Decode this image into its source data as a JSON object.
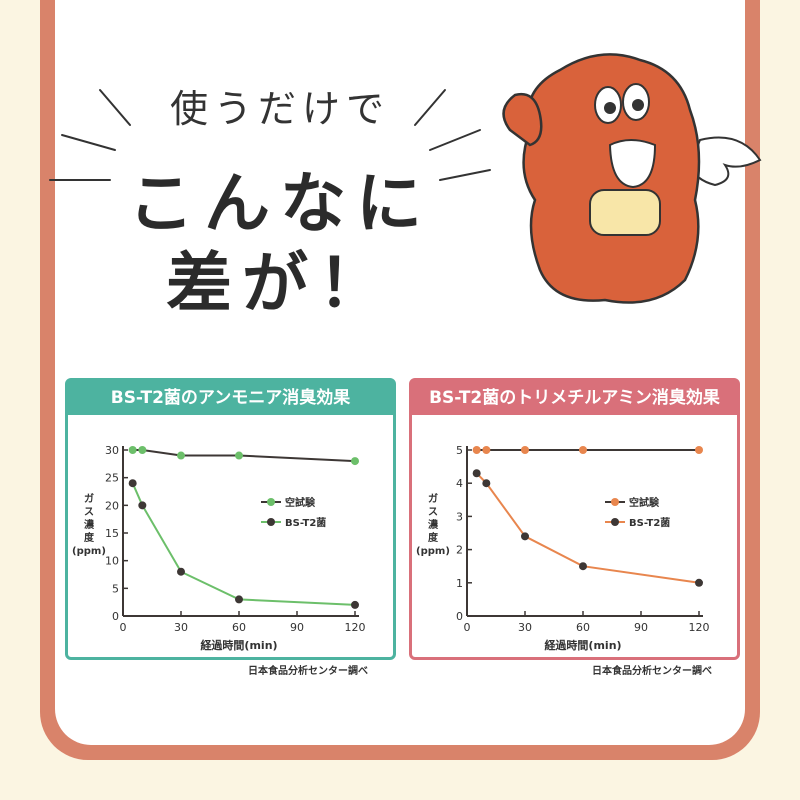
{
  "headline": {
    "line1": "使うだけで",
    "line2": "こんなに",
    "line3": "差が！"
  },
  "colors": {
    "frame": "#d9836a",
    "teal": "#4db3a0",
    "pink": "#d9707a",
    "green": "#6cbf6a",
    "orange": "#e8864e",
    "dark": "#3d3735"
  },
  "chart_data": [
    {
      "type": "line",
      "title": "BS-T2菌のアンモニア消臭効果",
      "xlabel": "経過時間(min)",
      "ylabel": "ガス濃度(ppm)",
      "xlim": [
        0,
        120
      ],
      "ylim": [
        0,
        30
      ],
      "xticks": [
        0,
        30,
        60,
        90,
        120
      ],
      "yticks": [
        0,
        5,
        10,
        15,
        20,
        25,
        30
      ],
      "legend_position": "right-center",
      "grid": false,
      "series": [
        {
          "name": "空試験",
          "x": [
            5,
            10,
            30,
            60,
            120
          ],
          "y": [
            30,
            30,
            29,
            29,
            28
          ],
          "line_color": "#3d3735",
          "marker_color": "#6cbf6a"
        },
        {
          "name": "BS-T2菌",
          "x": [
            5,
            10,
            30,
            60,
            120
          ],
          "y": [
            24,
            20,
            8,
            3,
            2
          ],
          "line_color": "#6cbf6a",
          "marker_color": "#3d3735"
        }
      ],
      "credit": "日本食品分析センター調べ"
    },
    {
      "type": "line",
      "title": "BS-T2菌のトリメチルアミン消臭効果",
      "xlabel": "経過時間(min)",
      "ylabel": "ガス濃度(ppm)",
      "xlim": [
        0,
        120
      ],
      "ylim": [
        0,
        5
      ],
      "xticks": [
        0,
        30,
        60,
        90,
        120
      ],
      "yticks": [
        0,
        1,
        2,
        3,
        4,
        5
      ],
      "legend_position": "right-center",
      "grid": false,
      "series": [
        {
          "name": "空試験",
          "x": [
            5,
            10,
            30,
            60,
            120
          ],
          "y": [
            5,
            5,
            5,
            5,
            5
          ],
          "line_color": "#3d3735",
          "marker_color": "#e8864e"
        },
        {
          "name": "BS-T2菌",
          "x": [
            5,
            10,
            30,
            60,
            120
          ],
          "y": [
            4.3,
            4,
            2.4,
            1.5,
            1
          ],
          "line_color": "#e8864e",
          "marker_color": "#3d3735"
        }
      ],
      "credit": "日本食品分析センター調べ"
    }
  ]
}
